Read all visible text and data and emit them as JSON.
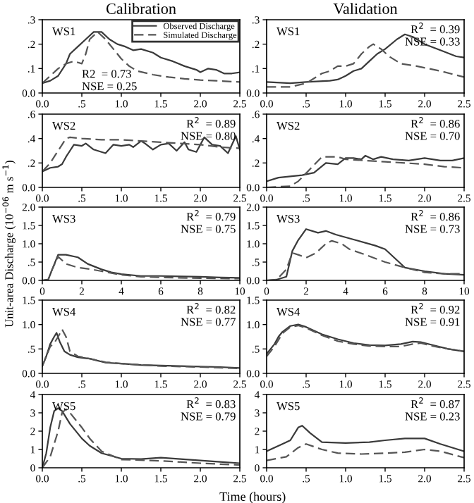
{
  "chart_data": [
    {
      "type": "line",
      "title": "Calibration",
      "legend": "top right",
      "xlim": [
        0,
        2.5
      ],
      "ylim": [
        0,
        0.3
      ],
      "xticks": [
        {
          "value": 0,
          "label": "0.0"
        },
        {
          "value": 0.5,
          "label": ".5"
        },
        {
          "value": 1,
          "label": "1.0"
        },
        1.5,
        {
          "value": 2,
          "label": "2.0"
        },
        2.5
      ],
      "yticks": [
        {
          "value": 0,
          "label": "0.0"
        },
        {
          "value": 0.1,
          "label": ".1"
        },
        {
          "value": 0.2,
          "label": ".2"
        },
        {
          "value": 0.3,
          "label": ".3"
        }
      ],
      "annotations": [
        "WS1",
        "R2  = 0.73",
        "NSE = 0.25"
      ],
      "series": [
        {
          "name": "Observed Discharge",
          "color": "#3a3a3a",
          "line_style": "solid",
          "x": [
            0,
            0.1,
            0.2,
            0.3,
            0.35,
            0.45,
            0.55,
            0.65,
            0.75,
            0.85,
            0.95,
            1.05,
            1.15,
            1.25,
            1.4,
            1.5,
            1.65,
            1.8,
            1.95,
            2.0,
            2.1,
            2.2,
            2.3,
            2.4,
            2.5
          ],
          "values": [
            0.04,
            0.05,
            0.07,
            0.12,
            0.16,
            0.19,
            0.22,
            0.25,
            0.25,
            0.22,
            0.2,
            0.19,
            0.175,
            0.18,
            0.165,
            0.145,
            0.13,
            0.11,
            0.095,
            0.085,
            0.1,
            0.095,
            0.08,
            0.08,
            0.085
          ]
        },
        {
          "name": "Simulated Discharge",
          "color": "#555555",
          "line_style": "dashed",
          "x": [
            0,
            0.1,
            0.2,
            0.3,
            0.4,
            0.5,
            0.55,
            0.6,
            0.7,
            0.8,
            0.9,
            1.0,
            1.1,
            1.2,
            1.4,
            1.6,
            1.8,
            2.0,
            2.2,
            2.5
          ],
          "values": [
            0.04,
            0.07,
            0.1,
            0.12,
            0.13,
            0.12,
            0.16,
            0.22,
            0.25,
            0.22,
            0.18,
            0.14,
            0.11,
            0.09,
            0.075,
            0.065,
            0.058,
            0.053,
            0.05,
            0.045
          ]
        }
      ]
    },
    {
      "type": "line",
      "title": "Validation",
      "xlim": [
        0,
        2.5
      ],
      "ylim": [
        0,
        0.3
      ],
      "xticks": [
        {
          "value": 0,
          "label": "0.0"
        },
        {
          "value": 0.5,
          "label": ".5"
        },
        {
          "value": 1,
          "label": "1.0"
        },
        1.5,
        {
          "value": 2,
          "label": "2.0"
        },
        2.5
      ],
      "yticks": [
        {
          "value": 0,
          "label": "0.0"
        },
        {
          "value": 0.1,
          "label": ".1"
        },
        {
          "value": 0.2,
          "label": ".2"
        },
        {
          "value": 0.3,
          "label": ".3"
        }
      ],
      "annotations": [
        "WS1",
        "R$^{2}$  = 0.39",
        "NSE = 0.33"
      ],
      "series": [
        {
          "color": "#3a3a3a",
          "line_style": "solid",
          "x": [
            0,
            0.3,
            0.5,
            0.8,
            0.9,
            1.0,
            1.1,
            1.2,
            1.3,
            1.4,
            1.5,
            1.65,
            1.75,
            1.85,
            2.0,
            2.2,
            2.4,
            2.5
          ],
          "values": [
            0.045,
            0.04,
            0.045,
            0.05,
            0.055,
            0.07,
            0.09,
            0.1,
            0.13,
            0.16,
            0.18,
            0.22,
            0.24,
            0.23,
            0.2,
            0.175,
            0.15,
            0.145
          ]
        },
        {
          "color": "#555555",
          "line_style": "dashed",
          "x": [
            0,
            0.3,
            0.5,
            0.6,
            0.7,
            0.8,
            0.9,
            1.0,
            1.1,
            1.2,
            1.3,
            1.35,
            1.45,
            1.55,
            1.7,
            1.9,
            2.2,
            2.5
          ],
          "values": [
            0.025,
            0.025,
            0.04,
            0.06,
            0.08,
            0.09,
            0.11,
            0.11,
            0.12,
            0.16,
            0.19,
            0.2,
            0.18,
            0.15,
            0.12,
            0.11,
            0.09,
            0.065
          ]
        }
      ]
    },
    {
      "type": "line",
      "xlim": [
        0,
        2.5
      ],
      "ylim": [
        0,
        0.6
      ],
      "xticks": [
        {
          "value": 0,
          "label": "0.0"
        },
        {
          "value": 0.5,
          "label": ".5"
        },
        {
          "value": 1,
          "label": "1.0"
        },
        1.5,
        {
          "value": 2,
          "label": "2.0"
        },
        2.5
      ],
      "yticks": [
        {
          "value": 0,
          "label": "0.0"
        },
        {
          "value": 0.2,
          "label": ".2"
        },
        {
          "value": 0.4,
          "label": ".4"
        },
        {
          "value": 0.6,
          "label": ".6"
        }
      ],
      "annotations": [
        "WS2",
        "R$^{2}$  = 0.89",
        "NSE = 0.80"
      ],
      "series": [
        {
          "color": "#3a3a3a",
          "line_style": "solid",
          "x": [
            0,
            0.1,
            0.2,
            0.25,
            0.3,
            0.35,
            0.4,
            0.5,
            0.55,
            0.65,
            0.75,
            0.8,
            0.9,
            1.0,
            1.1,
            1.15,
            1.25,
            1.3,
            1.4,
            1.5,
            1.6,
            1.7,
            1.8,
            1.85,
            1.95,
            2.05,
            2.15,
            2.25,
            2.35,
            2.45,
            2.5
          ],
          "values": [
            0.13,
            0.16,
            0.17,
            0.19,
            0.25,
            0.3,
            0.35,
            0.34,
            0.36,
            0.31,
            0.29,
            0.28,
            0.35,
            0.34,
            0.35,
            0.33,
            0.38,
            0.36,
            0.31,
            0.35,
            0.36,
            0.3,
            0.37,
            0.31,
            0.29,
            0.41,
            0.35,
            0.34,
            0.28,
            0.42,
            0.31
          ]
        },
        {
          "color": "#555555",
          "line_style": "dashed",
          "x": [
            0,
            0.1,
            0.2,
            0.3,
            0.35,
            0.5,
            0.75,
            1.0,
            1.25,
            1.5,
            1.75,
            2.0,
            2.25,
            2.5
          ],
          "values": [
            0.13,
            0.2,
            0.3,
            0.4,
            0.41,
            0.4,
            0.39,
            0.39,
            0.38,
            0.37,
            0.36,
            0.35,
            0.33,
            0.32
          ]
        }
      ]
    },
    {
      "type": "line",
      "xlim": [
        0,
        2.5
      ],
      "ylim": [
        0,
        0.6
      ],
      "xticks": [
        {
          "value": 0,
          "label": "0.0"
        },
        {
          "value": 0.5,
          "label": ".5"
        },
        {
          "value": 1,
          "label": "1.0"
        },
        1.5,
        {
          "value": 2,
          "label": "2.0"
        },
        2.5
      ],
      "yticks": [
        {
          "value": 0,
          "label": "0.0"
        },
        {
          "value": 0.2,
          "label": ".2"
        },
        {
          "value": 0.4,
          "label": ".4"
        },
        {
          "value": 0.6,
          "label": ".6"
        }
      ],
      "annotations": [
        "WS2",
        "R$^{2}$  = 0.86",
        "NSE = 0.70"
      ],
      "series": [
        {
          "color": "#3a3a3a",
          "line_style": "solid",
          "x": [
            0,
            0.15,
            0.3,
            0.45,
            0.6,
            0.75,
            0.9,
            1.0,
            1.1,
            1.2,
            1.25,
            1.35,
            1.45,
            1.6,
            1.8,
            2.0,
            2.2,
            2.35,
            2.5
          ],
          "values": [
            0.05,
            0.08,
            0.09,
            0.1,
            0.12,
            0.2,
            0.19,
            0.24,
            0.24,
            0.23,
            0.26,
            0.23,
            0.25,
            0.23,
            0.22,
            0.24,
            0.22,
            0.22,
            0.24
          ]
        },
        {
          "color": "#555555",
          "line_style": "dashed",
          "x": [
            0,
            0.3,
            0.4,
            0.55,
            0.7,
            0.9,
            1.0,
            1.25,
            1.5,
            1.75,
            2.0,
            2.25,
            2.5
          ],
          "values": [
            0.0,
            0.01,
            0.05,
            0.15,
            0.25,
            0.25,
            0.23,
            0.22,
            0.21,
            0.2,
            0.19,
            0.17,
            0.16
          ]
        }
      ]
    },
    {
      "type": "line",
      "ylabel": "Unit-area Discharge (10$^{−06}$ m s$^{−1}$)",
      "xlim": [
        0,
        10
      ],
      "ylim": [
        0,
        2
      ],
      "xticks": [
        0,
        2,
        4,
        6,
        8,
        10
      ],
      "yticks": [
        {
          "value": 0,
          "label": "0.0"
        },
        {
          "value": 0.5,
          "label": ".5"
        },
        {
          "value": 1,
          "label": "1.0"
        },
        1.5,
        {
          "value": 2,
          "label": "2.0"
        }
      ],
      "annotations": [
        "WS3",
        "R$^{2}$  = 0.79",
        "NSE = 0.75"
      ],
      "series": [
        {
          "color": "#3a3a3a",
          "line_style": "solid",
          "x": [
            0,
            0.3,
            0.5,
            0.8,
            1.2,
            1.8,
            2.3,
            3,
            3.5,
            4,
            5,
            6,
            7,
            8,
            9,
            10
          ],
          "values": [
            0.0,
            0.02,
            0.3,
            0.7,
            0.7,
            0.63,
            0.45,
            0.3,
            0.22,
            0.17,
            0.12,
            0.12,
            0.11,
            0.1,
            0.08,
            0.07
          ]
        },
        {
          "color": "#555555",
          "line_style": "dashed",
          "x": [
            0,
            0.3,
            0.5,
            0.8,
            1.2,
            1.8,
            2.5,
            3,
            4,
            5,
            6,
            8,
            10
          ],
          "values": [
            0.0,
            0.02,
            0.3,
            0.65,
            0.45,
            0.35,
            0.3,
            0.25,
            0.15,
            0.1,
            0.08,
            0.06,
            0.05
          ]
        }
      ]
    },
    {
      "type": "line",
      "xlim": [
        0,
        10
      ],
      "ylim": [
        0,
        2
      ],
      "xticks": [
        0,
        2,
        4,
        6,
        8,
        10
      ],
      "yticks": [
        {
          "value": 0,
          "label": "0.0"
        },
        {
          "value": 0.5,
          "label": ".5"
        },
        {
          "value": 1,
          "label": "1.0"
        },
        1.5,
        {
          "value": 2,
          "label": "2.0"
        }
      ],
      "annotations": [
        "WS3",
        "R$^{2}$  = 0.86",
        "NSE = 0.73"
      ],
      "series": [
        {
          "color": "#3a3a3a",
          "line_style": "solid",
          "x": [
            0,
            0.5,
            1,
            1.3,
            1.6,
            2,
            2.6,
            3,
            3.5,
            4.5,
            5.5,
            6,
            6.5,
            7,
            8,
            9,
            10
          ],
          "values": [
            0.0,
            0.02,
            0.1,
            0.8,
            1.1,
            1.4,
            1.3,
            1.35,
            1.25,
            1.1,
            0.95,
            0.85,
            0.6,
            0.35,
            0.25,
            0.18,
            0.15
          ]
        },
        {
          "color": "#555555",
          "line_style": "dashed",
          "x": [
            0,
            0.5,
            1,
            1.3,
            1.6,
            2,
            2.5,
            3,
            3.3,
            3.8,
            4.2,
            5,
            6,
            7,
            8,
            9,
            10
          ],
          "values": [
            0.0,
            0.02,
            0.3,
            0.75,
            0.7,
            0.62,
            0.75,
            1.0,
            1.08,
            1.0,
            0.85,
            0.7,
            0.5,
            0.35,
            0.22,
            0.18,
            0.18
          ]
        }
      ]
    },
    {
      "type": "line",
      "xlim": [
        0,
        2.5
      ],
      "ylim": [
        0,
        1.5
      ],
      "xticks": [
        {
          "value": 0,
          "label": "0.0"
        },
        {
          "value": 0.5,
          "label": ".5"
        },
        {
          "value": 1,
          "label": "1.0"
        },
        1.5,
        {
          "value": 2,
          "label": "2.0"
        },
        2.5
      ],
      "yticks": [
        {
          "value": 0,
          "label": "0.0"
        },
        {
          "value": 0.5,
          "label": ".5"
        },
        {
          "value": 1,
          "label": "1.0"
        },
        1.5
      ],
      "annotations": [
        "WS4",
        "R$^{2}$  = 0.82",
        "NSE = 0.77"
      ],
      "series": [
        {
          "color": "#3a3a3a",
          "line_style": "solid",
          "x": [
            0,
            0.05,
            0.1,
            0.15,
            0.18,
            0.22,
            0.28,
            0.35,
            0.45,
            0.6,
            0.8,
            1.0,
            1.25,
            1.5,
            1.75,
            2.0,
            2.25,
            2.5
          ],
          "values": [
            0.15,
            0.35,
            0.6,
            0.75,
            0.83,
            0.65,
            0.45,
            0.38,
            0.33,
            0.3,
            0.22,
            0.2,
            0.17,
            0.16,
            0.15,
            0.14,
            0.13,
            0.11
          ]
        },
        {
          "color": "#555555",
          "line_style": "dashed",
          "x": [
            0,
            0.05,
            0.1,
            0.15,
            0.2,
            0.25,
            0.3,
            0.35,
            0.45,
            0.6,
            0.8,
            1.0,
            1.5,
            2.0,
            2.5
          ],
          "values": [
            0.15,
            0.35,
            0.55,
            0.62,
            0.75,
            0.9,
            0.75,
            0.45,
            0.35,
            0.3,
            0.23,
            0.2,
            0.15,
            0.13,
            0.1
          ]
        }
      ]
    },
    {
      "type": "line",
      "xlim": [
        0,
        2.5
      ],
      "ylim": [
        0,
        1.5
      ],
      "xticks": [
        {
          "value": 0,
          "label": "0.0"
        },
        {
          "value": 0.5,
          "label": ".5"
        },
        {
          "value": 1,
          "label": "1.0"
        },
        1.5,
        {
          "value": 2,
          "label": "2.0"
        },
        2.5
      ],
      "yticks": [
        {
          "value": 0,
          "label": "0.0"
        },
        {
          "value": 0.5,
          "label": ".5"
        },
        {
          "value": 1,
          "label": "1.0"
        },
        1.5
      ],
      "annotations": [
        "WS4",
        "R$^{2}$  = 0.92",
        "NSE = 0.91"
      ],
      "series": [
        {
          "color": "#3a3a3a",
          "line_style": "solid",
          "x": [
            0,
            0.05,
            0.1,
            0.15,
            0.2,
            0.3,
            0.4,
            0.5,
            0.7,
            0.9,
            1.1,
            1.3,
            1.5,
            1.7,
            1.85,
            1.95,
            2.1,
            2.3,
            2.5
          ],
          "values": [
            0.4,
            0.5,
            0.6,
            0.75,
            0.85,
            0.97,
            1.0,
            0.95,
            0.8,
            0.7,
            0.62,
            0.58,
            0.57,
            0.6,
            0.65,
            0.64,
            0.58,
            0.5,
            0.45
          ]
        },
        {
          "color": "#555555",
          "line_style": "dashed",
          "x": [
            0,
            0.1,
            0.2,
            0.3,
            0.4,
            0.5,
            0.7,
            0.9,
            1.1,
            1.3,
            1.5,
            1.7,
            1.85,
            1.95,
            2.1,
            2.3,
            2.5
          ],
          "values": [
            0.35,
            0.55,
            0.82,
            0.95,
            0.98,
            0.93,
            0.78,
            0.66,
            0.6,
            0.56,
            0.55,
            0.55,
            0.6,
            0.62,
            0.56,
            0.5,
            0.45
          ]
        }
      ]
    },
    {
      "type": "line",
      "xlabel": "Time (hours)",
      "xlim": [
        0,
        2.5
      ],
      "ylim": [
        0,
        4
      ],
      "xticks": [
        {
          "value": 0,
          "label": "0.0"
        },
        {
          "value": 0.5,
          "label": ".5"
        },
        {
          "value": 1,
          "label": "1.0"
        },
        1.5,
        {
          "value": 2,
          "label": "2.0"
        },
        2.5
      ],
      "yticks": [
        0,
        1,
        2,
        3,
        4
      ],
      "annotations": [
        "WS5",
        "R$^{2}$  = 0.83",
        "NSE = 0.79"
      ],
      "series": [
        {
          "color": "#3a3a3a",
          "line_style": "solid",
          "x": [
            0,
            0.05,
            0.1,
            0.15,
            0.2,
            0.25,
            0.35,
            0.5,
            0.6,
            0.75,
            1.0,
            1.25,
            1.5,
            1.75,
            2.0,
            2.25,
            2.5
          ],
          "values": [
            0.0,
            0.8,
            2.2,
            3.1,
            3.25,
            3.1,
            2.4,
            1.6,
            1.2,
            0.8,
            0.5,
            0.48,
            0.55,
            0.48,
            0.4,
            0.32,
            0.25
          ]
        },
        {
          "color": "#555555",
          "line_style": "dashed",
          "x": [
            0,
            0.1,
            0.2,
            0.25,
            0.3,
            0.35,
            0.5,
            0.6,
            0.75,
            1.0,
            1.5,
            2.0,
            2.5
          ],
          "values": [
            0.0,
            0.6,
            2.0,
            3.0,
            3.2,
            3.0,
            2.2,
            1.6,
            0.9,
            0.45,
            0.38,
            0.25,
            0.15
          ]
        }
      ]
    },
    {
      "type": "line",
      "xlim": [
        0,
        2.5
      ],
      "ylim": [
        0,
        4
      ],
      "xticks": [
        {
          "value": 0,
          "label": "0.0"
        },
        {
          "value": 0.5,
          "label": ".5"
        },
        {
          "value": 1,
          "label": "1.0"
        },
        1.5,
        {
          "value": 2,
          "label": "2.0"
        },
        2.5
      ],
      "yticks": [
        0,
        1,
        2,
        3,
        4
      ],
      "annotations": [
        "WS5",
        "R$^{2}$  = 0.87",
        "NSE = 0.23"
      ],
      "series": [
        {
          "color": "#3a3a3a",
          "line_style": "solid",
          "x": [
            0,
            0.2,
            0.3,
            0.4,
            0.45,
            0.55,
            0.7,
            1.0,
            1.3,
            1.5,
            1.75,
            2.0,
            2.2,
            2.5
          ],
          "values": [
            0.9,
            1.3,
            1.5,
            2.2,
            2.3,
            1.9,
            1.4,
            1.35,
            1.4,
            1.5,
            1.6,
            1.6,
            1.3,
            0.9
          ]
        },
        {
          "color": "#555555",
          "line_style": "dashed",
          "x": [
            0,
            0.25,
            0.4,
            0.5,
            0.7,
            0.9,
            1.2,
            1.5,
            1.75,
            2.0,
            2.2,
            2.5
          ],
          "values": [
            0.4,
            0.6,
            1.1,
            1.3,
            1.0,
            0.8,
            0.75,
            0.8,
            0.85,
            1.0,
            0.9,
            0.55
          ]
        }
      ]
    }
  ]
}
